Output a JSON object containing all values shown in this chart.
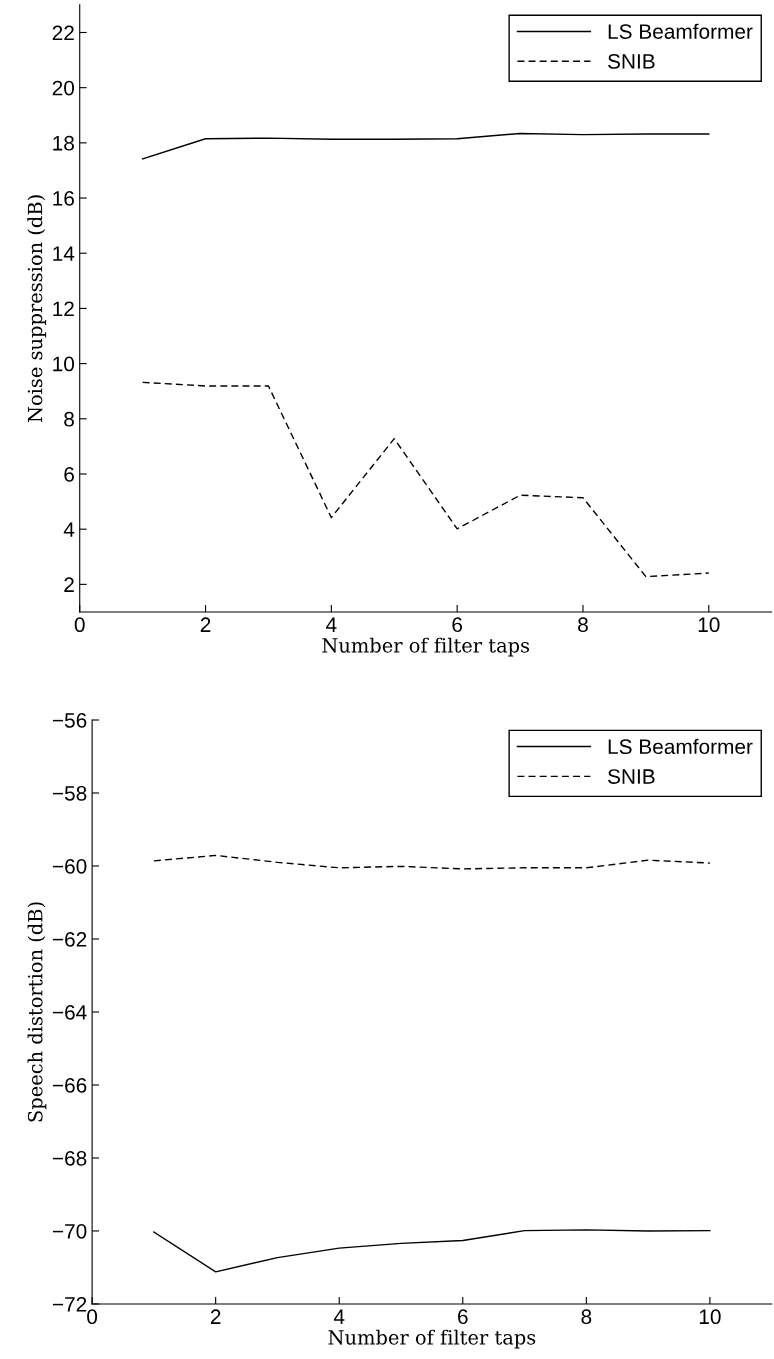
{
  "chart_data": [
    {
      "type": "line",
      "xlabel": "Number of filter taps",
      "ylabel": "Noise suppression (dB)",
      "x": [
        1,
        2,
        3,
        4,
        5,
        6,
        7,
        8,
        9,
        10
      ],
      "series": [
        {
          "name": "LS Beamformer",
          "color": "#000000",
          "line_style": "solid",
          "values": [
            17.42,
            18.15,
            18.17,
            18.13,
            18.13,
            18.15,
            18.34,
            18.3,
            18.32,
            18.32
          ]
        },
        {
          "name": "SNIB",
          "color": "#000000",
          "line_style": "dashed",
          "values": [
            9.32,
            9.19,
            9.19,
            4.42,
            7.28,
            4.01,
            5.23,
            5.14,
            2.28,
            2.41
          ]
        }
      ],
      "xlim": [
        0,
        11
      ],
      "xticks": [
        0,
        2,
        4,
        6,
        8,
        10
      ],
      "ylim": [
        1,
        23
      ],
      "yticks": [
        2,
        4,
        6,
        8,
        10,
        12,
        14,
        16,
        18,
        20,
        22
      ],
      "legend": "top right",
      "grid": false,
      "marker": "none"
    },
    {
      "type": "line",
      "xlabel": "Number of filter taps",
      "ylabel": "Speech distortion (dB)",
      "x": [
        1,
        2,
        3,
        4,
        5,
        6,
        7,
        8,
        9,
        10
      ],
      "series": [
        {
          "name": "LS Beamformer",
          "color": "#000000",
          "line_style": "solid",
          "values": [
            -70.03,
            -71.12,
            -70.73,
            -70.47,
            -70.34,
            -70.26,
            -69.99,
            -69.97,
            -70.0,
            -69.99
          ]
        },
        {
          "name": "SNIB",
          "color": "#000000",
          "line_style": "dashed",
          "values": [
            -59.86,
            -59.71,
            -59.9,
            -60.05,
            -60.01,
            -60.08,
            -60.05,
            -60.05,
            -59.84,
            -59.92
          ]
        }
      ],
      "xlim": [
        0,
        11
      ],
      "xticks": [
        0,
        2,
        4,
        6,
        8,
        10
      ],
      "ylim": [
        -72,
        -56
      ],
      "yticks": [
        -72,
        -70,
        -68,
        -66,
        -64,
        -62,
        -60,
        -58,
        -56
      ],
      "legend": "top right",
      "grid": false,
      "marker": "none"
    }
  ]
}
